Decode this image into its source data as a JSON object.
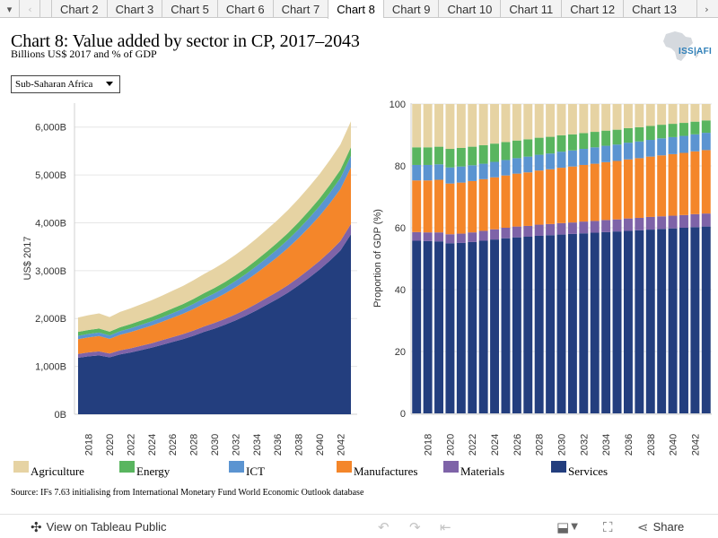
{
  "tabbar": {
    "prev_glyph": "‹",
    "next_glyph": "›",
    "menu_glyph": "▾",
    "tabs": [
      "Chart 2",
      "Chart 3",
      "Chart 5",
      "Chart 6",
      "Chart 7",
      "Chart 8",
      "Chart 9",
      "Chart 10",
      "Chart 11",
      "Chart 12",
      "Chart 13"
    ],
    "active_tab": "Chart 8"
  },
  "header": {
    "title": "Chart 8: Value added by sector in CP, 2017–2043",
    "subtitle": "Billions US$ 2017 and % of GDP",
    "logo_text": "ISS|AFI",
    "logo_icon": "africa-map-logo"
  },
  "filter": {
    "selected": "Sub-Saharan Africa"
  },
  "legend": {
    "items": [
      {
        "label": "Agriculture",
        "color": "#e6d3a3"
      },
      {
        "label": "Energy",
        "color": "#59b55f"
      },
      {
        "label": "ICT",
        "color": "#5b94d1"
      },
      {
        "label": "Manufactures",
        "color": "#f4862a"
      },
      {
        "label": "Materials",
        "color": "#7e63a8"
      },
      {
        "label": "Services",
        "color": "#233e7e"
      }
    ]
  },
  "source": "Source: IFs 7.63 initialising from International Monetary Fund World Economic Outlook database",
  "footer": {
    "view_label": "View on Tableau Public",
    "share_label": "Share",
    "tableau_icon": "tableau-logo-icon",
    "undo_icon": "undo-icon",
    "redo_icon": "redo-icon",
    "revert_icon": "revert-icon",
    "download_icon": "download-icon",
    "fullscreen_icon": "fullscreen-icon",
    "share_icon": "share-icon"
  },
  "chart_data": [
    {
      "type": "area",
      "stacked": true,
      "title": "",
      "xlabel": "",
      "ylabel": "US$ 2017",
      "x": [
        2017,
        2018,
        2019,
        2020,
        2021,
        2022,
        2023,
        2024,
        2025,
        2026,
        2027,
        2028,
        2029,
        2030,
        2031,
        2032,
        2033,
        2034,
        2035,
        2036,
        2037,
        2038,
        2039,
        2040,
        2041,
        2042,
        2043
      ],
      "xticks": [
        "2018",
        "2020",
        "2022",
        "2024",
        "2026",
        "2028",
        "2030",
        "2032",
        "2034",
        "2036",
        "2038",
        "2040",
        "2042"
      ],
      "ylim": [
        0,
        6500
      ],
      "yticks": [
        0,
        1000,
        2000,
        3000,
        4000,
        5000,
        6000
      ],
      "ytick_labels": [
        "0B",
        "1,000B",
        "2,000B",
        "3,000B",
        "4,000B",
        "5,000B",
        "6,000B"
      ],
      "grid": true,
      "series": [
        {
          "name": "Services",
          "color": "#233e7e",
          "values": [
            1180,
            1210,
            1230,
            1190,
            1250,
            1290,
            1340,
            1390,
            1450,
            1510,
            1570,
            1640,
            1720,
            1790,
            1870,
            1960,
            2060,
            2170,
            2290,
            2410,
            2540,
            2690,
            2850,
            3020,
            3210,
            3420,
            3760
          ]
        },
        {
          "name": "Materials",
          "color": "#7e63a8",
          "values": [
            80,
            82,
            84,
            80,
            84,
            87,
            90,
            93,
            97,
            101,
            105,
            109,
            113,
            118,
            122,
            127,
            132,
            138,
            144,
            150,
            157,
            164,
            172,
            180,
            190,
            200,
            215
          ]
        },
        {
          "name": "Manufactures",
          "color": "#f4862a",
          "values": [
            310,
            315,
            320,
            305,
            325,
            340,
            355,
            370,
            385,
            405,
            425,
            450,
            475,
            500,
            530,
            565,
            600,
            640,
            680,
            725,
            775,
            825,
            880,
            940,
            1010,
            1085,
            1180
          ]
        },
        {
          "name": "ICT",
          "color": "#5b94d1",
          "values": [
            70,
            72,
            74,
            72,
            76,
            80,
            84,
            88,
            92,
            97,
            102,
            107,
            113,
            119,
            125,
            132,
            139,
            147,
            155,
            164,
            173,
            183,
            194,
            205,
            217,
            230,
            245
          ]
        },
        {
          "name": "Energy",
          "color": "#59b55f",
          "values": [
            80,
            82,
            84,
            78,
            82,
            85,
            88,
            91,
            94,
            97,
            100,
            104,
            108,
            111,
            115,
            119,
            123,
            127,
            132,
            137,
            142,
            147,
            153,
            159,
            165,
            172,
            180
          ]
        },
        {
          "name": "Agriculture",
          "color": "#e6d3a3",
          "values": [
            300,
            310,
            315,
            305,
            320,
            330,
            340,
            350,
            360,
            370,
            380,
            390,
            400,
            410,
            420,
            430,
            440,
            450,
            460,
            470,
            480,
            490,
            500,
            510,
            520,
            530,
            540
          ]
        }
      ]
    },
    {
      "type": "bar",
      "stacked": true,
      "title": "",
      "xlabel": "",
      "ylabel": "Proportion of GDP (%)",
      "categories": [
        "2017",
        "2018",
        "2019",
        "2020",
        "2021",
        "2022",
        "2023",
        "2024",
        "2025",
        "2026",
        "2027",
        "2028",
        "2029",
        "2030",
        "2031",
        "2032",
        "2033",
        "2034",
        "2035",
        "2036",
        "2037",
        "2038",
        "2039",
        "2040",
        "2041",
        "2042",
        "2043"
      ],
      "xticks": [
        "2018",
        "2020",
        "2022",
        "2024",
        "2026",
        "2028",
        "2030",
        "2032",
        "2034",
        "2036",
        "2038",
        "2040",
        "2042"
      ],
      "ylim": [
        0,
        100
      ],
      "yticks": [
        0,
        20,
        40,
        60,
        80,
        100
      ],
      "grid": true,
      "series": [
        {
          "name": "Services",
          "color": "#233e7e",
          "values": [
            55.8,
            55.7,
            55.6,
            55.0,
            55.1,
            55.4,
            55.8,
            56.2,
            56.6,
            56.9,
            57.1,
            57.4,
            57.6,
            57.8,
            58.0,
            58.2,
            58.4,
            58.6,
            58.8,
            59.0,
            59.2,
            59.4,
            59.6,
            59.8,
            60.0,
            60.2,
            60.4
          ]
        },
        {
          "name": "Materials",
          "color": "#7e63a8",
          "values": [
            2.8,
            2.8,
            2.9,
            2.9,
            3.0,
            3.1,
            3.2,
            3.3,
            3.4,
            3.5,
            3.5,
            3.6,
            3.6,
            3.7,
            3.7,
            3.8,
            3.8,
            3.9,
            3.9,
            4.0,
            4.0,
            4.1,
            4.1,
            4.1,
            4.1,
            4.2,
            4.2
          ]
        },
        {
          "name": "Manufactures",
          "color": "#f4862a",
          "values": [
            16.7,
            16.8,
            17.0,
            16.4,
            16.5,
            16.6,
            16.7,
            16.8,
            16.9,
            17.1,
            17.3,
            17.5,
            17.7,
            17.9,
            18.1,
            18.3,
            18.5,
            18.7,
            18.9,
            19.1,
            19.3,
            19.5,
            19.7,
            19.9,
            20.1,
            20.3,
            20.5
          ]
        },
        {
          "name": "ICT",
          "color": "#5b94d1",
          "values": [
            5.0,
            5.0,
            5.0,
            5.2,
            5.2,
            5.1,
            5.0,
            5.0,
            5.0,
            5.0,
            5.1,
            5.1,
            5.1,
            5.2,
            5.2,
            5.2,
            5.3,
            5.3,
            5.3,
            5.4,
            5.4,
            5.4,
            5.5,
            5.5,
            5.5,
            5.5,
            5.6
          ]
        },
        {
          "name": "Energy",
          "color": "#59b55f",
          "values": [
            5.7,
            5.7,
            5.7,
            6.0,
            6.0,
            6.0,
            6.0,
            5.9,
            5.8,
            5.7,
            5.6,
            5.5,
            5.4,
            5.3,
            5.2,
            5.1,
            5.0,
            4.9,
            4.8,
            4.7,
            4.6,
            4.5,
            4.4,
            4.3,
            4.2,
            4.1,
            4.0
          ]
        },
        {
          "name": "Agriculture",
          "color": "#e6d3a3",
          "values": [
            14.0,
            14.0,
            13.8,
            14.5,
            14.2,
            13.8,
            13.3,
            12.8,
            12.3,
            11.8,
            11.4,
            10.9,
            10.6,
            10.1,
            9.8,
            9.4,
            9.0,
            8.6,
            8.3,
            7.8,
            7.5,
            7.1,
            6.7,
            6.4,
            6.1,
            5.7,
            5.3
          ]
        }
      ]
    }
  ]
}
